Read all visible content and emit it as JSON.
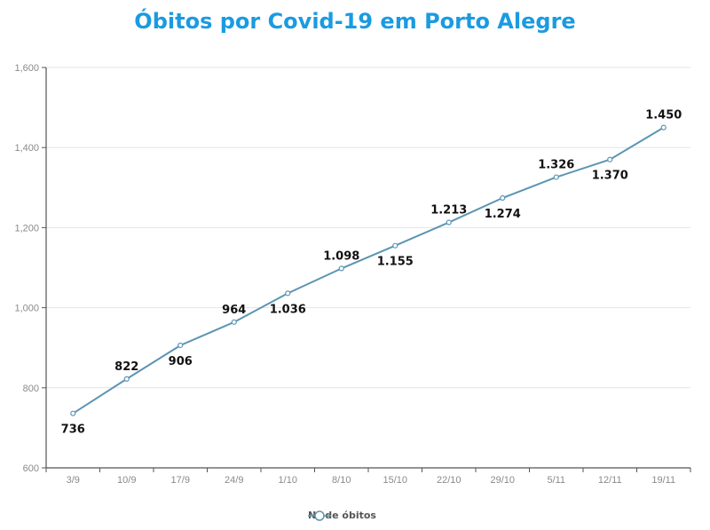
{
  "title": "Óbitos por Covid-19 em Porto Alegre",
  "legend": {
    "label": "Nº de óbitos",
    "color": "#5b95b3"
  },
  "colors": {
    "title": "#1a9be0",
    "line": "#5b95b3",
    "grid": "#e4e4e4",
    "axis": "#555555"
  },
  "chart_data": {
    "type": "line",
    "title": "Óbitos por Covid-19 em Porto Alegre",
    "xlabel": "",
    "ylabel": "",
    "categories": [
      "3/9",
      "10/9",
      "17/9",
      "24/9",
      "1/10",
      "8/10",
      "15/10",
      "22/10",
      "29/10",
      "5/11",
      "12/11",
      "19/11"
    ],
    "series": [
      {
        "name": "Nº de óbitos",
        "values": [
          736,
          822,
          906,
          964,
          1036,
          1098,
          1155,
          1213,
          1274,
          1326,
          1370,
          1450
        ],
        "labels": [
          "736",
          "822",
          "906",
          "964",
          "1.036",
          "1.098",
          "1.155",
          "1.213",
          "1.274",
          "1.326",
          "1.370",
          "1.450"
        ],
        "label_positions": [
          "below",
          "above",
          "below",
          "above",
          "below",
          "above",
          "below",
          "above",
          "below",
          "above",
          "below",
          "above"
        ]
      }
    ],
    "ylim": [
      600,
      1600
    ],
    "yticks": [
      600,
      800,
      1000,
      1200,
      1400,
      1600
    ],
    "ytick_labels": [
      "600",
      "800",
      "1,000",
      "1,200",
      "1,400",
      "1,600"
    ],
    "grid": true,
    "legend_position": "bottom"
  }
}
